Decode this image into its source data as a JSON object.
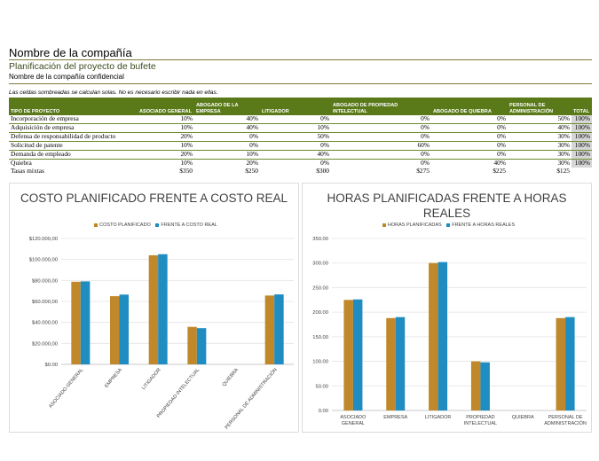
{
  "header": {
    "company": "Nombre de la compañía",
    "subtitle": "Planificación del proyecto de bufete",
    "confidential": "Nombre de la compañía confidencial",
    "note": "Las celdas sombreadas se calculan solas. No es necesario escribir nada en ellas."
  },
  "table": {
    "headers": [
      "TIPO DE PROYECTO",
      "ASOCIADO GENERAL",
      "ABOGADO DE LA EMPRESA",
      "LITIGADOR",
      "ABOGADO DE PROPIEDAD INTELECTUAL",
      "ABOGADO DE QUIEBRA",
      "PERSONAL DE ADMINISTRACIÓN",
      "TOTAL"
    ],
    "rows": [
      [
        "Incorporación de empresa",
        "10%",
        "40%",
        "0%",
        "0%",
        "0%",
        "50%",
        "100%"
      ],
      [
        "Adquisición de empresa",
        "10%",
        "40%",
        "10%",
        "0%",
        "0%",
        "40%",
        "100%"
      ],
      [
        "Defensa de responsabilidad de producto",
        "20%",
        "0%",
        "50%",
        "0%",
        "0%",
        "30%",
        "100%"
      ],
      [
        "Solicitud de patente",
        "10%",
        "0%",
        "0%",
        "60%",
        "0%",
        "30%",
        "100%"
      ],
      [
        "Demanda de empleado",
        "20%",
        "10%",
        "40%",
        "0%",
        "0%",
        "30%",
        "100%"
      ],
      [
        "Quiebra",
        "10%",
        "20%",
        "0%",
        "0%",
        "40%",
        "30%",
        "100%"
      ]
    ],
    "rates": [
      "Tasas mixtas",
      "$350",
      "$250",
      "$300",
      "$275",
      "$225",
      "$125",
      ""
    ]
  },
  "chart_data": [
    {
      "type": "bar",
      "title": "COSTO PLANIFICADO FRENTE A COSTO REAL",
      "categories": [
        "ASOCIADO GENERAL",
        "EMPRESA",
        "LITIGADOR",
        "PROPIEDAD INTELECTUAL",
        "QUIEBRA",
        "PERSONAL DE ADMINISTRACIÓN"
      ],
      "series": [
        {
          "name": "COSTO PLANIFICADO",
          "values": [
            78750,
            65000,
            104000,
            35750,
            0,
            65625
          ],
          "color": "#C0882B"
        },
        {
          "name": "FRENTE A COSTO REAL",
          "values": [
            79100,
            66500,
            105000,
            34500,
            0,
            66700
          ],
          "color": "#1F8DC1"
        }
      ],
      "ylim": [
        0,
        120000
      ],
      "yticks": [
        "$0.00",
        "$20.000,00",
        "$40.000,00",
        "$60.000,00",
        "$80.000,00",
        "$100.000,00",
        "$120.000,00"
      ],
      "legend": "top",
      "grid": true
    },
    {
      "type": "bar",
      "title": "HORAS PLANIFICADAS FRENTE A HORAS REALES",
      "categories": [
        "ASOCIADO GENERAL",
        "EMPRESA",
        "LITIGADOR",
        "PROPIEDAD INTELECTUAL",
        "QUIEBRA",
        "PERSONAL DE ADMINISTRACIÓN"
      ],
      "series": [
        {
          "name": "HORAS PLANIFICADAS",
          "values": [
            225,
            188,
            300,
            100,
            0,
            188
          ],
          "color": "#C0882B"
        },
        {
          "name": "FRENTE A HORAS REALES",
          "values": [
            226,
            190,
            302,
            98,
            0,
            190
          ],
          "color": "#1F8DC1"
        }
      ],
      "ylim": [
        0,
        350
      ],
      "yticks": [
        "0.00",
        "50.00",
        "100.00",
        "150.00",
        "200.00",
        "250.00",
        "300.00",
        "350.00"
      ],
      "legend": "top",
      "grid": true
    }
  ]
}
